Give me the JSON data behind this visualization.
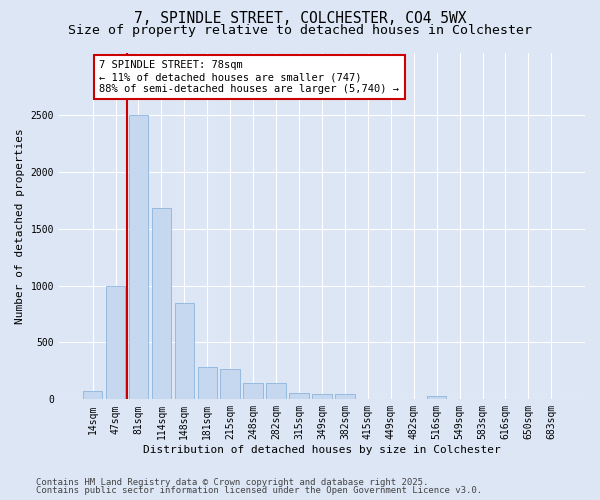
{
  "title_line1": "7, SPINDLE STREET, COLCHESTER, CO4 5WX",
  "title_line2": "Size of property relative to detached houses in Colchester",
  "xlabel": "Distribution of detached houses by size in Colchester",
  "ylabel": "Number of detached properties",
  "categories": [
    "14sqm",
    "47sqm",
    "81sqm",
    "114sqm",
    "148sqm",
    "181sqm",
    "215sqm",
    "248sqm",
    "282sqm",
    "315sqm",
    "349sqm",
    "382sqm",
    "415sqm",
    "449sqm",
    "482sqm",
    "516sqm",
    "549sqm",
    "583sqm",
    "616sqm",
    "650sqm",
    "683sqm"
  ],
  "values": [
    75,
    1000,
    2500,
    1680,
    850,
    280,
    270,
    140,
    140,
    60,
    50,
    50,
    0,
    0,
    0,
    25,
    0,
    0,
    0,
    0,
    0
  ],
  "bar_color": "#c5d8f0",
  "bar_edge_color": "#7facd6",
  "vline_color": "#cc0000",
  "vline_x": 1.5,
  "annotation_text": "7 SPINDLE STREET: 78sqm\n← 11% of detached houses are smaller (747)\n88% of semi-detached houses are larger (5,740) →",
  "annotation_box_facecolor": "#ffffff",
  "annotation_box_edgecolor": "#cc0000",
  "ylim": [
    0,
    3050
  ],
  "yticks": [
    0,
    500,
    1000,
    1500,
    2000,
    2500
  ],
  "background_color": "#dce6f5",
  "plot_background": "#dce6f5",
  "grid_color": "#ffffff",
  "footer_line1": "Contains HM Land Registry data © Crown copyright and database right 2025.",
  "footer_line2": "Contains public sector information licensed under the Open Government Licence v3.0.",
  "title_fontsize": 10.5,
  "subtitle_fontsize": 9.5,
  "axis_label_fontsize": 8,
  "tick_fontsize": 7,
  "annotation_fontsize": 7.5,
  "footer_fontsize": 6.5
}
